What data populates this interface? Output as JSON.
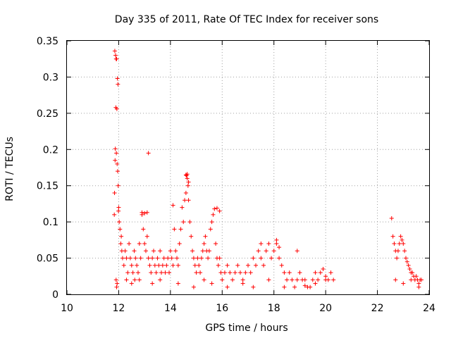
{
  "chart_data": {
    "type": "scatter",
    "title": "Day 335 of 2011, Rate Of TEC Index for receiver sons",
    "xlabel": "GPS time / hours",
    "ylabel": "ROTI / TECUs",
    "xlim": [
      10,
      24
    ],
    "ylim": [
      0,
      0.35
    ],
    "x_ticks": [
      "10",
      "12",
      "14",
      "16",
      "18",
      "20",
      "22",
      "24"
    ],
    "y_ticks": [
      "0",
      "0.05",
      "0.1",
      "0.15",
      "0.2",
      "0.25",
      "0.3",
      "0.35"
    ],
    "grid": true,
    "marker": "+",
    "color": "#ff0000",
    "series": [
      {
        "x": [
          11.85,
          11.88,
          11.9,
          11.92,
          11.95,
          11.97,
          11.89,
          11.93,
          11.87,
          11.91,
          11.86,
          11.94,
          11.96,
          11.98,
          12.0,
          12.05,
          12.1,
          12.12,
          11.84,
          11.83,
          11.99,
          12.02,
          12.08,
          12.15,
          12.2,
          12.25,
          12.3,
          12.35,
          12.4,
          12.45,
          12.5,
          12.55,
          12.6,
          12.62,
          12.65,
          12.7,
          12.75,
          12.8,
          12.85,
          12.9,
          12.95,
          13.0,
          13.05,
          13.1,
          13.15,
          13.2,
          13.25,
          13.3,
          13.35,
          13.4,
          13.45,
          13.5,
          13.55,
          13.6,
          13.65,
          13.7,
          13.75,
          13.8,
          13.85,
          13.9,
          13.95,
          14.0,
          14.05,
          14.1,
          14.15,
          14.2,
          14.25,
          14.3,
          14.35,
          14.4,
          14.45,
          14.5,
          14.55,
          14.6,
          14.62,
          14.65,
          14.68,
          14.7,
          14.75,
          14.8,
          14.85,
          14.9,
          14.95,
          15.0,
          15.05,
          15.1,
          15.15,
          15.2,
          15.25,
          15.3,
          15.35,
          15.4,
          15.45,
          15.5,
          15.55,
          15.6,
          15.65,
          15.7,
          15.75,
          15.8,
          15.85,
          15.9,
          15.95,
          16.0,
          16.1,
          16.2,
          16.3,
          16.4,
          16.5,
          16.6,
          16.7,
          16.8,
          16.9,
          17.0,
          17.1,
          17.2,
          17.3,
          17.4,
          17.5,
          17.6,
          17.7,
          17.8,
          17.9,
          18.0,
          18.1,
          18.2,
          18.3,
          18.4,
          18.5,
          18.6,
          18.7,
          18.8,
          18.9,
          19.0,
          19.1,
          19.2,
          19.3,
          19.4,
          19.5,
          19.6,
          19.7,
          19.8,
          19.9,
          20.0,
          20.1,
          20.2,
          20.3,
          22.55,
          22.6,
          22.65,
          22.7,
          22.75,
          22.8,
          22.85,
          22.9,
          22.95,
          23.0,
          23.05,
          23.1,
          23.15,
          23.2,
          23.25,
          23.3,
          23.35,
          23.4,
          23.45,
          23.5,
          23.55,
          23.6,
          23.65,
          23.7,
          12.9,
          13.0,
          13.1,
          13.15,
          14.1,
          14.6,
          14.65,
          14.7,
          15.8,
          15.9,
          17.5,
          18.1,
          18.2,
          18.9,
          11.9,
          11.92,
          11.94,
          12.3,
          12.5,
          12.8,
          13.3,
          13.6,
          14.3,
          14.9,
          15.3,
          15.6,
          16.2,
          16.8,
          17.2,
          17.8,
          18.4,
          19.2,
          19.6,
          20.0,
          22.7,
          23.0,
          23.3,
          23.6
        ],
        "y": [
          0.336,
          0.33,
          0.325,
          0.325,
          0.298,
          0.29,
          0.258,
          0.256,
          0.201,
          0.195,
          0.185,
          0.18,
          0.17,
          0.15,
          0.12,
          0.09,
          0.08,
          0.06,
          0.14,
          0.11,
          0.115,
          0.1,
          0.07,
          0.05,
          0.04,
          0.06,
          0.05,
          0.03,
          0.07,
          0.05,
          0.04,
          0.03,
          0.06,
          0.02,
          0.05,
          0.04,
          0.03,
          0.07,
          0.05,
          0.11,
          0.09,
          0.07,
          0.06,
          0.08,
          0.05,
          0.04,
          0.03,
          0.05,
          0.06,
          0.04,
          0.03,
          0.05,
          0.04,
          0.06,
          0.03,
          0.04,
          0.05,
          0.03,
          0.04,
          0.05,
          0.03,
          0.06,
          0.05,
          0.04,
          0.09,
          0.06,
          0.05,
          0.04,
          0.07,
          0.09,
          0.12,
          0.1,
          0.13,
          0.14,
          0.164,
          0.166,
          0.15,
          0.13,
          0.1,
          0.08,
          0.06,
          0.05,
          0.04,
          0.03,
          0.05,
          0.04,
          0.03,
          0.05,
          0.06,
          0.07,
          0.08,
          0.06,
          0.05,
          0.06,
          0.09,
          0.1,
          0.11,
          0.118,
          0.07,
          0.05,
          0.04,
          0.05,
          0.03,
          0.02,
          0.03,
          0.04,
          0.03,
          0.02,
          0.03,
          0.04,
          0.03,
          0.02,
          0.03,
          0.04,
          0.03,
          0.05,
          0.04,
          0.06,
          0.05,
          0.04,
          0.06,
          0.07,
          0.05,
          0.06,
          0.07,
          0.05,
          0.04,
          0.03,
          0.02,
          0.03,
          0.02,
          0.01,
          0.02,
          0.03,
          0.02,
          0.02,
          0.01,
          0.01,
          0.02,
          0.03,
          0.02,
          0.03,
          0.035,
          0.025,
          0.02,
          0.03,
          0.02,
          0.105,
          0.08,
          0.07,
          0.06,
          0.05,
          0.06,
          0.07,
          0.08,
          0.075,
          0.07,
          0.06,
          0.05,
          0.045,
          0.04,
          0.035,
          0.03,
          0.03,
          0.025,
          0.02,
          0.025,
          0.02,
          0.015,
          0.02,
          0.02,
          0.113,
          0.112,
          0.113,
          0.195,
          0.123,
          0.165,
          0.16,
          0.155,
          0.119,
          0.115,
          0.07,
          0.075,
          0.065,
          0.06,
          0.02,
          0.01,
          0.015,
          0.02,
          0.015,
          0.02,
          0.015,
          0.02,
          0.015,
          0.01,
          0.02,
          0.015,
          0.01,
          0.015,
          0.01,
          0.02,
          0.01,
          0.012,
          0.015,
          0.02,
          0.02,
          0.015,
          0.02,
          0.01
        ]
      }
    ]
  }
}
